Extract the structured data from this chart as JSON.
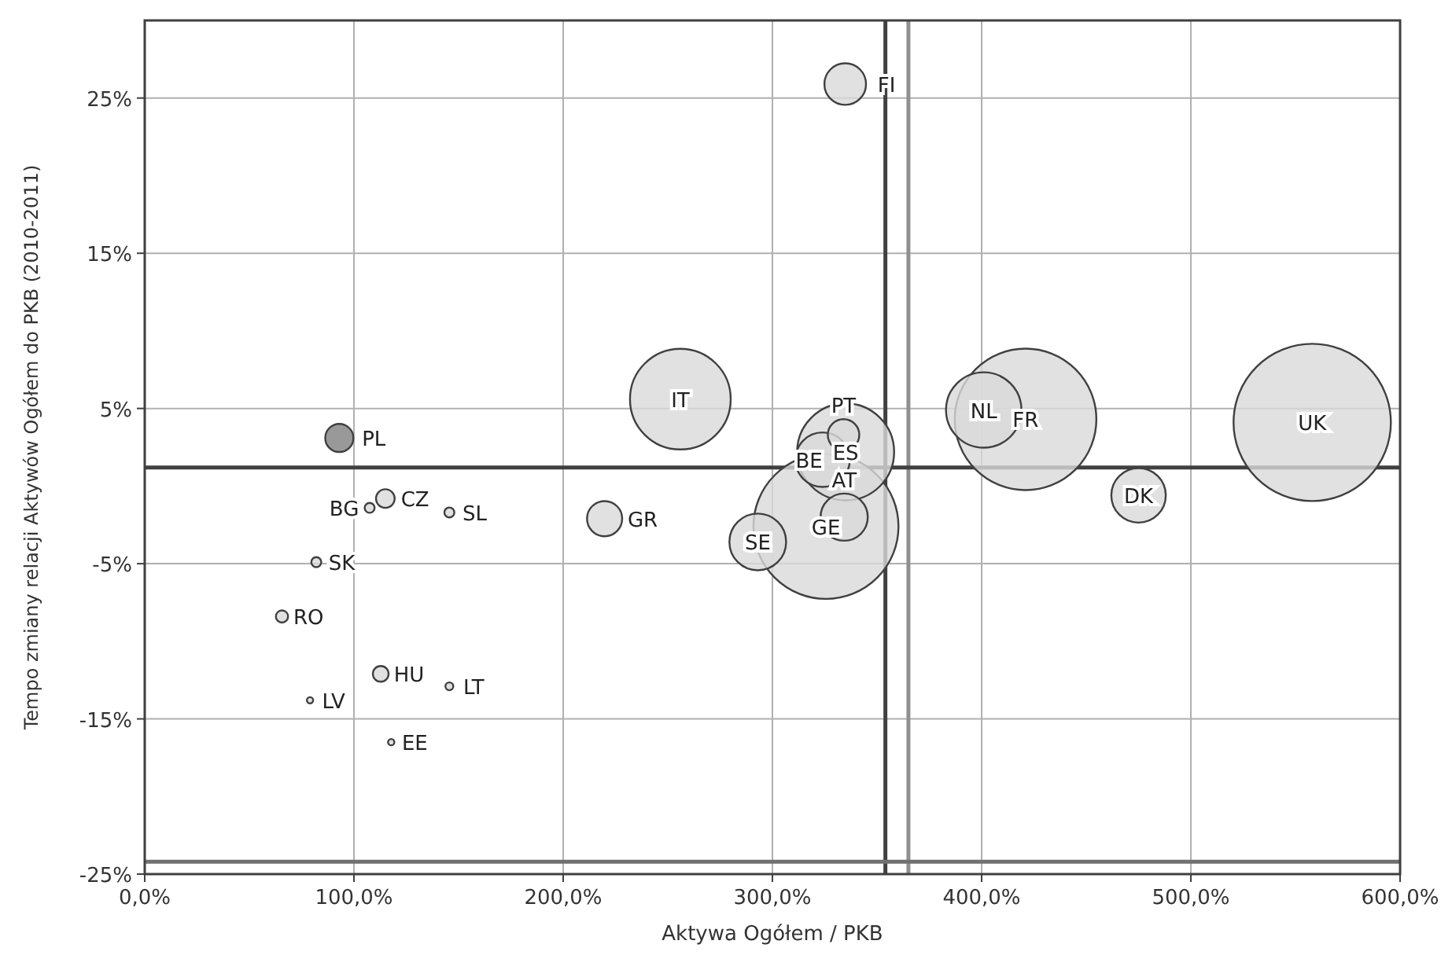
{
  "chart_data": {
    "type": "bubble",
    "xlabel": "Aktywa Ogółem / PKB",
    "ylabel": "Tempo zmiany relacji Aktywów Ogółem do PKB (2010-2011)",
    "xlim": [
      0,
      600
    ],
    "xticks": [
      {
        "value": 0,
        "label": "0,0%"
      },
      {
        "value": 100,
        "label": "100,0%"
      },
      {
        "value": 200,
        "label": "200,0%"
      },
      {
        "value": 300,
        "label": "300,0%"
      },
      {
        "value": 400,
        "label": "400,0%"
      },
      {
        "value": 500,
        "label": "500,0%"
      },
      {
        "value": 600,
        "label": "600,0%"
      }
    ],
    "ylim": [
      -25,
      30
    ],
    "yticks": [
      {
        "value": -25,
        "label": "-25%"
      },
      {
        "value": -15,
        "label": "-15%"
      },
      {
        "value": -5,
        "label": "-5%"
      },
      {
        "value": 5,
        "label": "5%"
      },
      {
        "value": 15,
        "label": "15%"
      },
      {
        "value": 25,
        "label": "25%"
      }
    ],
    "grid": true,
    "ref_lines": [
      {
        "axis": "x",
        "value": 354,
        "color": "#404040"
      },
      {
        "axis": "x",
        "value": 365,
        "color": "#909090"
      },
      {
        "axis": "y",
        "value": 1.2,
        "color": "#404040"
      },
      {
        "axis": "y",
        "value": -24.2,
        "color": "#707070"
      }
    ],
    "series": [
      {
        "name": "UK",
        "color": "#d9d9d9",
        "x": [
          558
        ],
        "values": [
          4.1
        ],
        "sizes": [
          1
        ]
      },
      {
        "name": "GE",
        "color": "#d9d9d9",
        "x": [
          325.6
        ],
        "values": [
          -2.6
        ],
        "sizes": [
          0.85
        ]
      },
      {
        "name": "FR",
        "color": "#d9d9d9",
        "x": [
          421
        ],
        "values": [
          4.3
        ],
        "sizes": [
          0.81
        ]
      },
      {
        "name": "IT",
        "color": "#d9d9d9",
        "x": [
          256
        ],
        "values": [
          5.6
        ],
        "sizes": [
          0.41
        ]
      },
      {
        "name": "ES",
        "color": "#d9d9d9",
        "x": [
          335
        ],
        "values": [
          2.2
        ],
        "sizes": [
          0.38
        ]
      },
      {
        "name": "NL",
        "color": "#d9d9d9",
        "x": [
          401
        ],
        "values": [
          4.9
        ],
        "sizes": [
          0.23
        ]
      },
      {
        "name": "SE",
        "color": "#d9d9d9",
        "x": [
          293
        ],
        "values": [
          -3.6
        ],
        "sizes": [
          0.13
        ]
      },
      {
        "name": "BE",
        "color": "#d9d9d9",
        "x": [
          324
        ],
        "values": [
          1.7
        ],
        "sizes": [
          0.12
        ]
      },
      {
        "name": "DK",
        "color": "#d9d9d9",
        "x": [
          475
        ],
        "values": [
          -0.6
        ],
        "sizes": [
          0.12
        ]
      },
      {
        "name": "AT",
        "color": "#d9d9d9",
        "x": [
          334.3
        ],
        "values": [
          -2.0
        ],
        "sizes": [
          0.09
        ]
      },
      {
        "name": "FI",
        "color": "#d9d9d9",
        "x": [
          334.8
        ],
        "values": [
          25.9
        ],
        "sizes": [
          0.07
        ]
      },
      {
        "name": "GR",
        "color": "#d9d9d9",
        "x": [
          219.8
        ],
        "values": [
          -2.1
        ],
        "sizes": [
          0.05
        ]
      },
      {
        "name": "PT",
        "color": "#d9d9d9",
        "x": [
          334
        ],
        "values": [
          3.3
        ],
        "sizes": [
          0.04
        ]
      },
      {
        "name": "PL",
        "color": "#808080",
        "x": [
          93
        ],
        "values": [
          3.1
        ],
        "sizes": [
          0.032
        ]
      },
      {
        "name": "CZ",
        "color": "#d9d9d9",
        "x": [
          115
        ],
        "values": [
          -0.8
        ],
        "sizes": [
          0.014
        ]
      },
      {
        "name": "HU",
        "color": "#d9d9d9",
        "x": [
          112.8
        ],
        "values": [
          -12.1
        ],
        "sizes": [
          0.01
        ]
      },
      {
        "name": "RO",
        "color": "#d9d9d9",
        "x": [
          65.6
        ],
        "values": [
          -8.4
        ],
        "sizes": [
          0.006
        ]
      },
      {
        "name": "BG",
        "color": "#d9d9d9",
        "x": [
          107.5
        ],
        "values": [
          -1.4
        ],
        "sizes": [
          0.004
        ]
      },
      {
        "name": "SL",
        "color": "#d9d9d9",
        "x": [
          145.6
        ],
        "values": [
          -1.7
        ],
        "sizes": [
          0.004
        ]
      },
      {
        "name": "SK",
        "color": "#d9d9d9",
        "x": [
          82
        ],
        "values": [
          -4.9
        ],
        "sizes": [
          0.004
        ]
      },
      {
        "name": "LT",
        "color": "#d9d9d9",
        "x": [
          145.6
        ],
        "values": [
          -12.9
        ],
        "sizes": [
          0.0025
        ]
      },
      {
        "name": "LV",
        "color": "#d9d9d9",
        "x": [
          79
        ],
        "values": [
          -13.8
        ],
        "sizes": [
          0.0016
        ]
      },
      {
        "name": "EE",
        "color": "#d9d9d9",
        "x": [
          117.8
        ],
        "values": [
          -16.5
        ],
        "sizes": [
          0.0016
        ]
      }
    ]
  }
}
